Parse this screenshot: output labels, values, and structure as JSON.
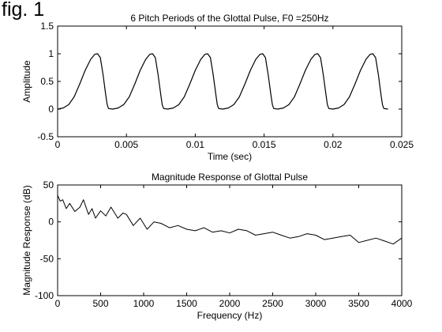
{
  "figure_label": "fig. 1",
  "chart_data": [
    {
      "type": "line",
      "title": "6 Pitch Periods of the Glottal Pulse, F0 =250Hz",
      "xlabel": "Time (sec)",
      "ylabel": "Amplitude",
      "xlim": [
        0,
        0.025
      ],
      "ylim": [
        -0.5,
        1.5
      ],
      "xticks": [
        0,
        0.005,
        0.01,
        0.015,
        0.02,
        0.025
      ],
      "xtick_labels": [
        "0",
        "0.005",
        "0.01",
        "0.015",
        "0.02",
        "0.025"
      ],
      "yticks": [
        -0.5,
        0,
        0.5,
        1,
        1.5
      ],
      "ytick_labels": [
        "-0.5",
        "0",
        "0.5",
        "1",
        "1.5"
      ],
      "grid": false,
      "series": [
        {
          "periods": 6,
          "period_sec": 0.004,
          "x": [
            0,
            0.0004,
            0.0008,
            0.0012,
            0.0016,
            0.002,
            0.0024,
            0.0027,
            0.0029,
            0.0031,
            0.0033,
            0.0035,
            0.0036,
            0.0037,
            0.004
          ],
          "y": [
            0,
            0.02,
            0.08,
            0.22,
            0.45,
            0.7,
            0.9,
            0.99,
            1.0,
            0.93,
            0.62,
            0.25,
            0.08,
            0.01,
            0
          ]
        }
      ]
    },
    {
      "type": "line",
      "title": "Magnitude Response of Glottal Pulse",
      "xlabel": "Frequency (Hz)",
      "ylabel": "Magnitude Response (dB)",
      "xlim": [
        0,
        4000
      ],
      "ylim": [
        -100,
        50
      ],
      "xticks": [
        0,
        500,
        1000,
        1500,
        2000,
        2500,
        3000,
        3500,
        4000
      ],
      "xtick_labels": [
        "0",
        "500",
        "1000",
        "1500",
        "2000",
        "2500",
        "3000",
        "3500",
        "4000"
      ],
      "yticks": [
        -100,
        -50,
        0,
        50
      ],
      "ytick_labels": [
        "-100",
        "-50",
        "0",
        "50"
      ],
      "grid": false,
      "series": [
        {
          "x": [
            0,
            30,
            60,
            100,
            140,
            200,
            260,
            300,
            360,
            400,
            440,
            500,
            560,
            620,
            700,
            760,
            800,
            880,
            960,
            1040,
            1120,
            1200,
            1300,
            1400,
            1500,
            1600,
            1700,
            1800,
            1900,
            2000,
            2100,
            2200,
            2300,
            2400,
            2500,
            2600,
            2700,
            2800,
            2900,
            3000,
            3100,
            3200,
            3300,
            3400,
            3500,
            3600,
            3700,
            3800,
            3900,
            4000
          ],
          "y": [
            36,
            28,
            30,
            18,
            25,
            14,
            20,
            30,
            10,
            18,
            5,
            15,
            8,
            20,
            5,
            12,
            10,
            -5,
            5,
            -10,
            0,
            -2,
            -8,
            -5,
            -10,
            -12,
            -8,
            -14,
            -12,
            -15,
            -10,
            -12,
            -18,
            -16,
            -14,
            -18,
            -22,
            -20,
            -16,
            -18,
            -24,
            -22,
            -20,
            -18,
            -28,
            -25,
            -22,
            -26,
            -30,
            -22
          ]
        }
      ]
    }
  ]
}
